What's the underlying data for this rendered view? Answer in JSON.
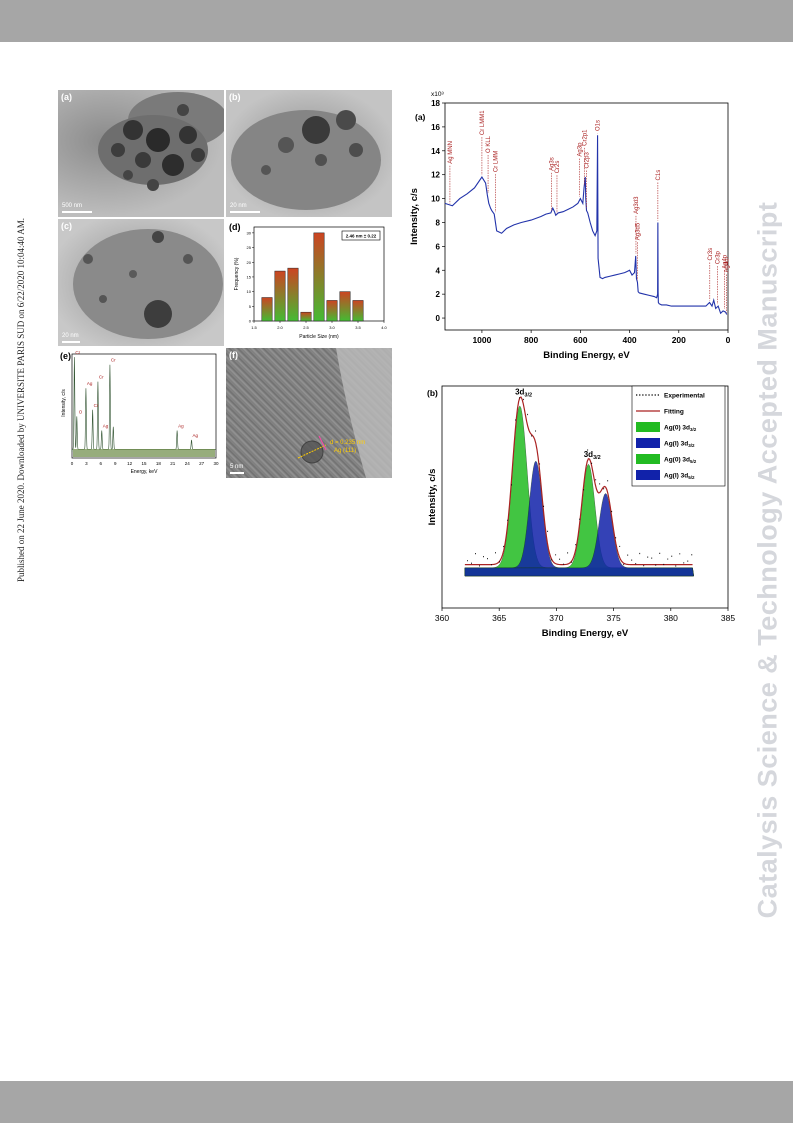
{
  "sidebar": {
    "text": "Published on 22 June 2020. Downloaded by UNIVERSITE PARIS SUD on 6/22/2020 10:04:40 AM."
  },
  "watermark": {
    "text": "Catalysis Science & Technology Accepted Manuscript"
  },
  "figure_left": {
    "panel_a": {
      "label": "(a)",
      "scale": "500 nm"
    },
    "panel_b": {
      "label": "(b)",
      "scale": "20 nm"
    },
    "panel_c": {
      "label": "(c)",
      "scale": "20 nm"
    },
    "panel_f": {
      "label": "(f)",
      "scale": "5 nm",
      "annot_d": "d = 0.235 nm",
      "annot_plane": "Ag (111)"
    },
    "panel_e": {
      "label": "(e)",
      "ylabel": "Intensity, c/s",
      "xlabel": "Energy, keV",
      "xticks": [
        "0",
        "3",
        "6",
        "9",
        "12",
        "15",
        "18",
        "21",
        "24",
        "27",
        "30"
      ],
      "peak_labels": [
        "Cr",
        "O",
        "Ag",
        "Cr",
        "Cr",
        "Ag",
        "Cr",
        "Ag",
        "Ag"
      ]
    }
  },
  "chart_data": [
    {
      "type": "bar",
      "panel": "(d)",
      "title": "",
      "xlabel": "Particle Size (nm)",
      "ylabel": "Frequency (%)",
      "legend_box": "2.46 nm ± 0.22",
      "categories": [
        "1.75",
        "2.0",
        "2.25",
        "2.5",
        "2.75",
        "3.0",
        "3.25",
        "3.5"
      ],
      "values": [
        8,
        17,
        18,
        3,
        30,
        7,
        10,
        7
      ],
      "xticks": [
        "1.5",
        "2.0",
        "2.5",
        "3.0",
        "3.5",
        "4.0"
      ],
      "yticks": [
        "0",
        "5",
        "10",
        "15",
        "20",
        "25",
        "30"
      ],
      "xlim": [
        1.5,
        4.0
      ],
      "ylim": [
        0,
        32
      ],
      "colors": {
        "bar_top": "#cc4422",
        "bar_bottom": "#44bb33"
      }
    },
    {
      "type": "line",
      "panel": "(a)",
      "title": "",
      "xlabel": "Binding Energy, eV",
      "ylabel": "Intensity, c/s",
      "y_multiplier": "x10³",
      "xlim": [
        1150,
        0
      ],
      "ylim": [
        -1,
        18
      ],
      "xticks": [
        "1000",
        "800",
        "600",
        "400",
        "200",
        "0"
      ],
      "yticks": [
        "0",
        "2",
        "4",
        "6",
        "8",
        "10",
        "12",
        "14",
        "16",
        "18"
      ],
      "color": "#2233aa",
      "series": [
        {
          "x": [
            1150,
            1120,
            1090,
            1060,
            1030,
            1000,
            985,
            978,
            972,
            965,
            960,
            950,
            940,
            920,
            900,
            870,
            840,
            800,
            760,
            740,
            720,
            712,
            705,
            700,
            690,
            670,
            650,
            630,
            610,
            600,
            590,
            585,
            580,
            578,
            575,
            570,
            560,
            550,
            540,
            533,
            530,
            528,
            520,
            510,
            500,
            480,
            460,
            440,
            420,
            410,
            400,
            390,
            380,
            375,
            372,
            368,
            365,
            360,
            340,
            320,
            300,
            290,
            286,
            285,
            284,
            283,
            280,
            270,
            250,
            230,
            200,
            170,
            140,
            110,
            90,
            75,
            65,
            58,
            50,
            40,
            30,
            20,
            10,
            5
          ],
          "y": [
            9.6,
            9.4,
            10.0,
            10.4,
            10.9,
            11.8,
            11.3,
            10.3,
            9.6,
            9.2,
            9.0,
            8.7,
            7.3,
            7.1,
            7.5,
            7.8,
            8.0,
            8.2,
            8.5,
            8.7,
            8.8,
            9.2,
            8.9,
            8.6,
            8.8,
            8.9,
            9.1,
            9.3,
            9.6,
            10.0,
            9.6,
            10.9,
            11.8,
            10.0,
            9.0,
            8.8,
            8.0,
            7.3,
            6.9,
            7.3,
            15.3,
            5.0,
            3.4,
            3.3,
            3.4,
            3.5,
            3.6,
            3.7,
            3.8,
            3.9,
            4.0,
            3.6,
            3.8,
            5.2,
            3.3,
            3.0,
            2.2,
            2.1,
            2.0,
            1.9,
            1.8,
            1.7,
            2.0,
            8.0,
            2.2,
            1.3,
            1.2,
            1.1,
            1.1,
            1.0,
            1.0,
            1.0,
            1.0,
            1.0,
            1.0,
            1.3,
            1.0,
            1.5,
            0.8,
            1.0,
            0.4,
            0.6,
            0.5,
            0.3
          ]
        }
      ],
      "peak_labels": [
        {
          "label": "Ag MNN",
          "x": 1130
        },
        {
          "label": "Cr LMM1",
          "x": 1000
        },
        {
          "label": "O KLL",
          "x": 975
        },
        {
          "label": "Cr LMM",
          "x": 945
        },
        {
          "label": "Ag3s",
          "x": 718
        },
        {
          "label": "Cr2s",
          "x": 695
        },
        {
          "label": "Ag3p",
          "x": 604
        },
        {
          "label": "Cr2p1",
          "x": 584
        },
        {
          "label": "Cr2p3",
          "x": 575
        },
        {
          "label": "O1s",
          "x": 530
        },
        {
          "label": "Ag3d3",
          "x": 374
        },
        {
          "label": "Ag3d5",
          "x": 368
        },
        {
          "label": "C1s",
          "x": 285
        },
        {
          "label": "Cr3s",
          "x": 74
        },
        {
          "label": "Cr3p",
          "x": 43
        },
        {
          "label": "Ag4p",
          "x": 15
        },
        {
          "label": "Ag4d",
          "x": 6
        }
      ],
      "peak_label_color": "#aa2222"
    },
    {
      "type": "line",
      "panel": "(b)",
      "title": "",
      "xlabel": "Binding Energy, eV",
      "ylabel": "Intensity, c/s",
      "xlim": [
        360,
        385
      ],
      "xticks": [
        "360",
        "365",
        "370",
        "375",
        "380",
        "385"
      ],
      "peak_labels": [
        {
          "label": "3d",
          "sub": "3/2",
          "x": 367
        },
        {
          "label": "3d",
          "sub": "3/2",
          "x": 373
        }
      ],
      "legend": [
        {
          "name": "Experimental",
          "style": "dotted",
          "color": "#000000"
        },
        {
          "name": "Fitting",
          "style": "line",
          "color": "#aa2222"
        },
        {
          "name": "Ag(0) 3d",
          "sub": "3/2",
          "style": "fill",
          "color": "#22bb22"
        },
        {
          "name": "Ag(I) 3d",
          "sub": "3/2",
          "style": "fill",
          "color": "#1122aa"
        },
        {
          "name": "Ag(0) 3d",
          "sub": "5/2",
          "style": "fill",
          "color": "#22bb22"
        },
        {
          "name": "Ag(I) 3d",
          "sub": "5/2",
          "style": "fill",
          "color": "#1122aa"
        }
      ],
      "components": [
        {
          "name": "Ag(0) 3d3/2",
          "center": 366.8,
          "height": 1.0,
          "width": 0.9
        },
        {
          "name": "Ag(I) 3d3/2",
          "center": 368.2,
          "height": 0.66,
          "width": 0.8
        },
        {
          "name": "Ag(0) 3d5/2",
          "center": 372.8,
          "height": 0.64,
          "width": 0.8
        },
        {
          "name": "Ag(I) 3d5/2",
          "center": 374.3,
          "height": 0.46,
          "width": 0.8
        }
      ],
      "baseline": 0.05
    }
  ]
}
